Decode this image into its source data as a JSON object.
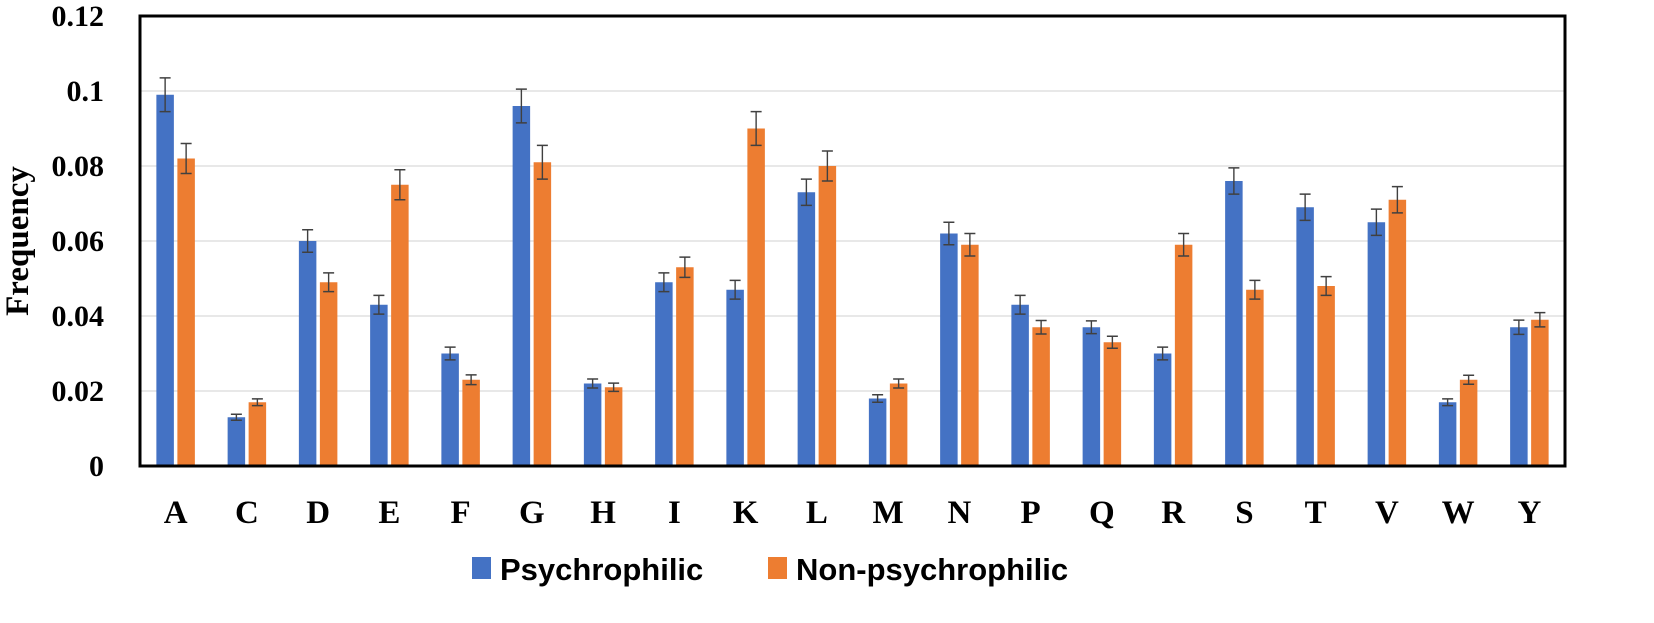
{
  "chart_data": {
    "type": "bar",
    "ylabel": "Frequency",
    "xlabel": "",
    "title": "",
    "ylim": [
      0,
      0.12
    ],
    "yticks": [
      0,
      0.02,
      0.04,
      0.06,
      0.08,
      0.1,
      0.12
    ],
    "ytick_labels": [
      "0",
      "0.02",
      "0.04",
      "0.06",
      "0.08",
      "0.1",
      "0.12"
    ],
    "grid": true,
    "legend_position": "bottom",
    "categories": [
      "A",
      "C",
      "D",
      "E",
      "F",
      "G",
      "H",
      "I",
      "K",
      "L",
      "M",
      "N",
      "P",
      "Q",
      "R",
      "S",
      "T",
      "V",
      "W",
      "Y"
    ],
    "series": [
      {
        "name": "Psychrophilic",
        "color": "#4472c4",
        "values": [
          0.099,
          0.013,
          0.06,
          0.043,
          0.03,
          0.096,
          0.022,
          0.049,
          0.047,
          0.073,
          0.018,
          0.062,
          0.043,
          0.037,
          0.03,
          0.076,
          0.069,
          0.065,
          0.017,
          0.037
        ],
        "errors": [
          0.0045,
          0.0008,
          0.003,
          0.0025,
          0.0017,
          0.0045,
          0.0012,
          0.0025,
          0.0025,
          0.0035,
          0.001,
          0.003,
          0.0025,
          0.0017,
          0.0017,
          0.0035,
          0.0035,
          0.0035,
          0.0009,
          0.0019
        ]
      },
      {
        "name": "Non-psychrophilic",
        "color": "#ed7d31",
        "values": [
          0.082,
          0.017,
          0.049,
          0.075,
          0.023,
          0.081,
          0.021,
          0.053,
          0.09,
          0.08,
          0.022,
          0.059,
          0.037,
          0.033,
          0.059,
          0.047,
          0.048,
          0.071,
          0.023,
          0.039
        ],
        "errors": [
          0.004,
          0.0009,
          0.0025,
          0.004,
          0.0013,
          0.0045,
          0.0011,
          0.0027,
          0.0045,
          0.004,
          0.0012,
          0.003,
          0.0018,
          0.0016,
          0.003,
          0.0025,
          0.0025,
          0.0035,
          0.0012,
          0.0019
        ]
      }
    ]
  }
}
